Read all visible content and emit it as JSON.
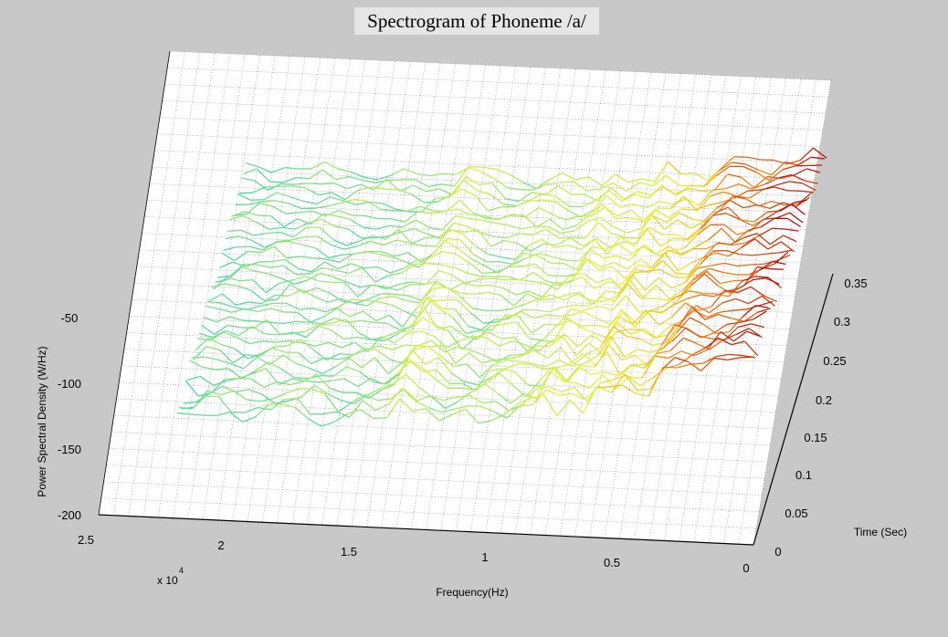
{
  "chart_data": {
    "type": "surface",
    "title": "Spectrogram of Phoneme /a/",
    "xlabel": "Frequency(Hz)",
    "x_scale_label": "x 10",
    "x_scale_exponent": "4",
    "ylabel": "Time (Sec)",
    "zlabel": "Power Spectral Density (W/Hz)",
    "x_ticks": [
      "0",
      "0.5",
      "1",
      "1.5",
      "2",
      "2.5"
    ],
    "y_ticks": [
      "0",
      "0.05",
      "0.1",
      "0.15",
      "0.2",
      "0.25",
      "0.3",
      "0.35"
    ],
    "z_ticks": [
      "-200",
      "-150",
      "-100",
      "-50"
    ],
    "xlim": [
      0,
      2.5
    ],
    "ylim": [
      0,
      0.35
    ],
    "zlim": [
      -200,
      -30
    ],
    "colormap": [
      "#4fd6a8",
      "#b6ec5a",
      "#e8f03a",
      "#f5b81f",
      "#e8620f",
      "#b30d0a"
    ],
    "grid": true,
    "surface_profile": {
      "x_units": "x 10^4 Hz",
      "x": [
        0,
        0.05,
        0.1,
        0.15,
        0.2,
        0.25,
        0.3,
        0.35,
        0.4,
        0.45,
        0.5,
        0.55,
        0.6,
        0.65,
        0.7,
        0.75,
        0.8,
        0.85,
        0.9,
        0.95,
        1.0,
        1.05,
        1.1,
        1.15,
        1.2,
        1.25,
        1.3,
        1.35,
        1.4,
        1.45,
        1.5,
        1.55,
        1.6,
        1.65,
        1.7,
        1.75,
        1.8,
        1.85,
        1.9,
        1.95,
        2.0,
        2.05,
        2.1,
        2.15,
        2.2
      ],
      "peak_psd": [
        -60,
        -58,
        -62,
        -65,
        -70,
        -72,
        -70,
        -74,
        -85,
        -95,
        -90,
        -96,
        -88,
        -104,
        -100,
        -106,
        -98,
        -108,
        -110,
        -112,
        -108,
        -112,
        -114,
        -115,
        -116,
        -110,
        -106,
        -102,
        -114,
        -116,
        -117,
        -118,
        -118,
        -117,
        -118,
        -119,
        -119,
        -118,
        -119,
        -120,
        -120,
        -121,
        -121,
        -122,
        -123
      ]
    }
  }
}
